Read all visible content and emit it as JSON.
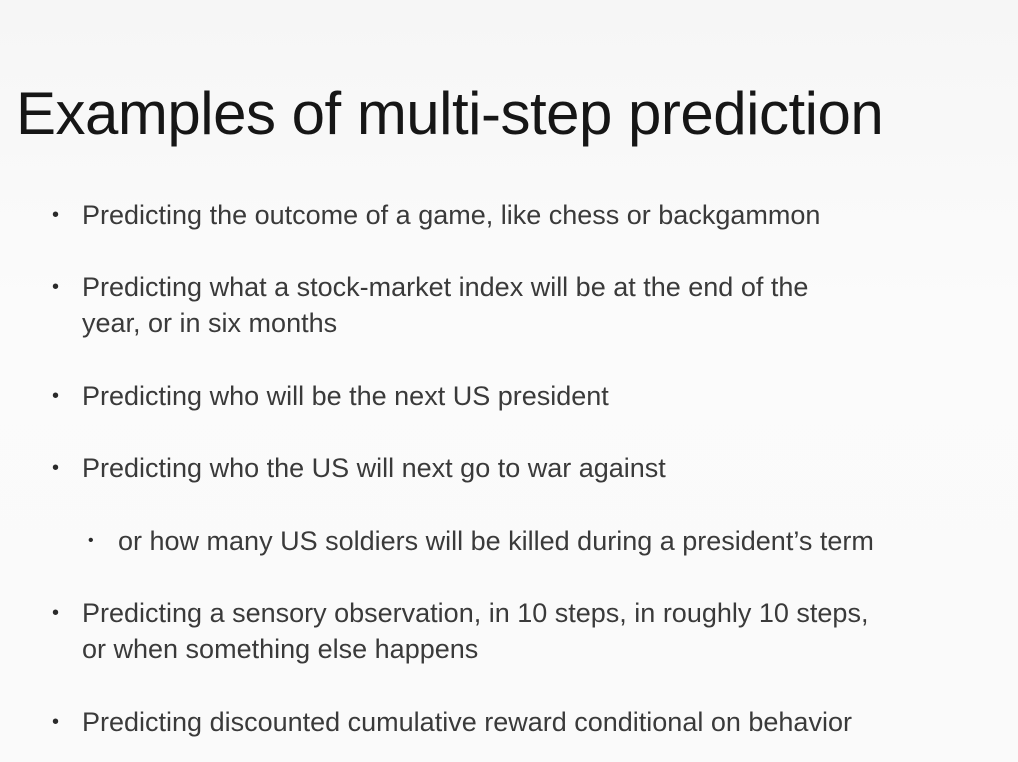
{
  "slide": {
    "title": "Examples of multi-step prediction",
    "bullets": [
      {
        "line1": "Predicting the outcome of a game, like chess or backgammon"
      },
      {
        "line1": "Predicting what a stock-market index will be at the end of the",
        "line2": "year, or in six months"
      },
      {
        "line1": "Predicting who will be the next US president"
      },
      {
        "line1": "Predicting who the US will next go to war against"
      },
      {
        "line1": "or how many US soldiers will be killed during a president’s term"
      },
      {
        "line1": "Predicting a sensory observation, in 10 steps, in roughly 10 steps,",
        "line2": "or when something else happens"
      },
      {
        "line1": "Predicting discounted cumulative reward conditional on behavior"
      }
    ],
    "bullet_glyph": "•"
  }
}
